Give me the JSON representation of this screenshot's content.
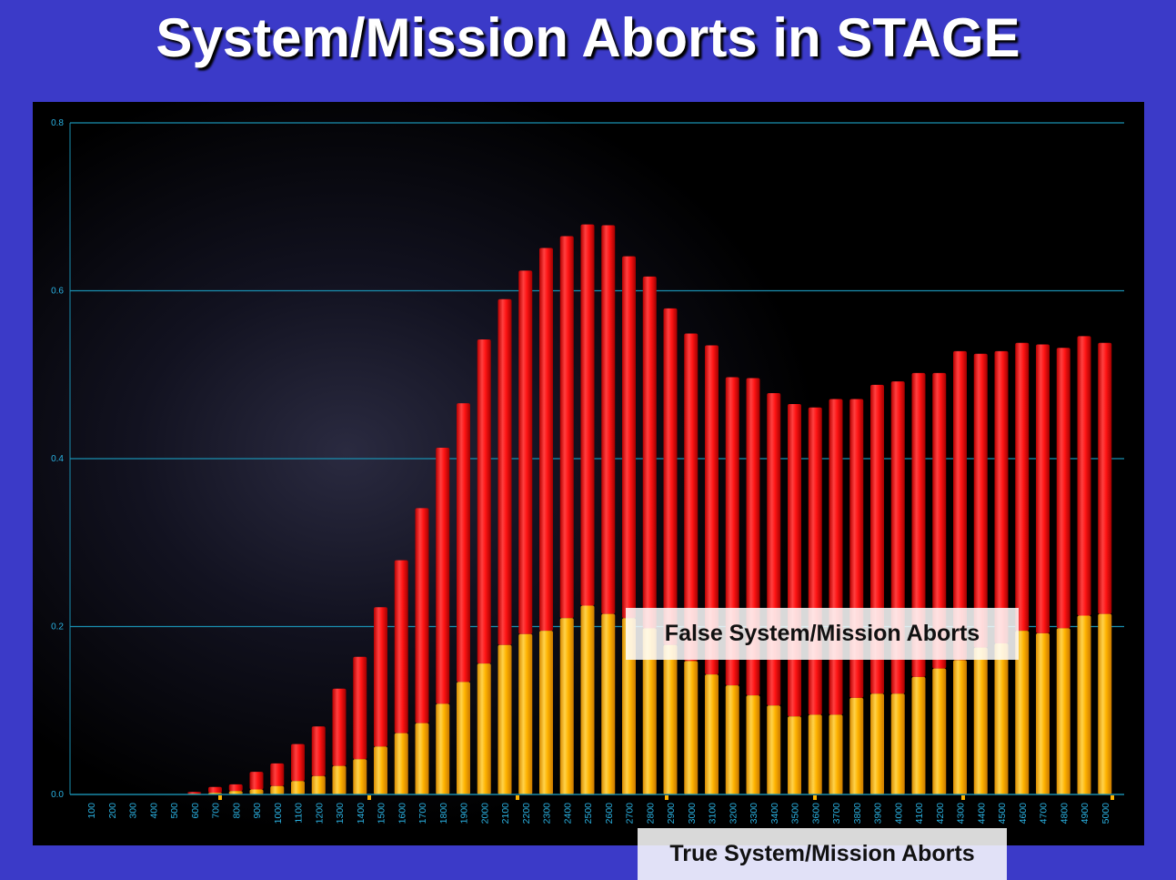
{
  "title": "System/Mission Aborts in STAGE",
  "colors": {
    "background": "#3b3ac8",
    "true_series": "#ffb300",
    "false_series": "#ff1a1a",
    "gridline": "#1a8fb0",
    "tick_text": "#2ab0e0"
  },
  "chart_data": {
    "type": "bar",
    "stacked": true,
    "title": "System/Mission Aborts in STAGE",
    "xlabel": "",
    "ylabel": "",
    "ylim": [
      0,
      0.8
    ],
    "yticks": [
      "0.0",
      "0.2",
      "0.4",
      "0.6",
      "0.8"
    ],
    "grid": true,
    "categories": [
      "100",
      "200",
      "300",
      "400",
      "500",
      "600",
      "700",
      "800",
      "900",
      "1000",
      "1100",
      "1200",
      "1300",
      "1400",
      "1500",
      "1600",
      "1700",
      "1800",
      "1900",
      "2000",
      "2100",
      "2200",
      "2300",
      "2400",
      "2500",
      "2600",
      "2700",
      "2800",
      "2900",
      "3000",
      "3100",
      "3200",
      "3300",
      "3400",
      "3500",
      "3600",
      "3700",
      "3800",
      "3900",
      "4000",
      "4100",
      "4200",
      "4300",
      "4400",
      "4500",
      "4600",
      "4700",
      "4800",
      "4900",
      "5000"
    ],
    "series": [
      {
        "name": "True System/Mission Aborts",
        "color": "#ffb300",
        "values": [
          0,
          0,
          0,
          0,
          0,
          0.001,
          0.002,
          0.004,
          0.006,
          0.01,
          0.016,
          0.022,
          0.034,
          0.042,
          0.057,
          0.073,
          0.085,
          0.108,
          0.134,
          0.156,
          0.178,
          0.191,
          0.195,
          0.21,
          0.225,
          0.215,
          0.21,
          0.198,
          0.178,
          0.159,
          0.143,
          0.13,
          0.118,
          0.106,
          0.093,
          0.095,
          0.095,
          0.115,
          0.12,
          0.12,
          0.14,
          0.15,
          0.16,
          0.175,
          0.18,
          0.195,
          0.192,
          0.198,
          0.213,
          0.215
        ]
      },
      {
        "name": "False System/Mission Aborts",
        "color": "#ff1a1a",
        "values": [
          0,
          0,
          0,
          0,
          0,
          0.002,
          0.007,
          0.008,
          0.021,
          0.027,
          0.044,
          0.059,
          0.092,
          0.122,
          0.166,
          0.206,
          0.256,
          0.305,
          0.332,
          0.386,
          0.412,
          0.433,
          0.456,
          0.455,
          0.454,
          0.463,
          0.431,
          0.419,
          0.401,
          0.39,
          0.392,
          0.367,
          0.378,
          0.372,
          0.372,
          0.366,
          0.376,
          0.356,
          0.368,
          0.372,
          0.362,
          0.352,
          0.368,
          0.35,
          0.348,
          0.343,
          0.344,
          0.334,
          0.333,
          0.323
        ]
      }
    ],
    "annotations": [
      "False System/Mission Aborts",
      "True System/Mission Aborts"
    ]
  }
}
